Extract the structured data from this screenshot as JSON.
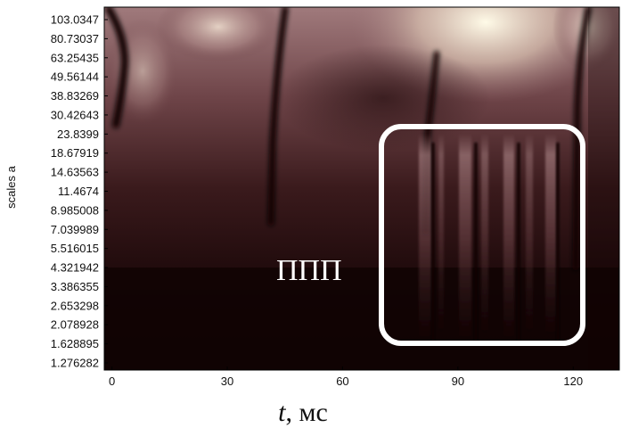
{
  "chart_data": {
    "type": "heatmap",
    "title": "",
    "ylabel": "scales a",
    "xlabel_var": "t",
    "xlabel_unit": ", мс",
    "x_ticks": [
      0,
      30,
      60,
      90,
      120
    ],
    "xlim": [
      -2,
      132
    ],
    "y_ticks": [
      "103.0347",
      "80.73037",
      "63.25435",
      "49.56144",
      "38.83269",
      "30.42643",
      "23.8399",
      "18.67919",
      "14.63563",
      "11.4674",
      "8.985008",
      "7.039989",
      "5.516015",
      "4.321942",
      "3.386355",
      "2.653298",
      "2.078928",
      "1.628895",
      "1.276282"
    ],
    "y_scale": "log",
    "colormap": [
      "#100303",
      "#3a1a1c",
      "#6e4448",
      "#a07a7c",
      "#d8c0b0",
      "#fffbe8"
    ],
    "annotation_text": "ППП",
    "highlight_box_color": "#ffffff"
  }
}
